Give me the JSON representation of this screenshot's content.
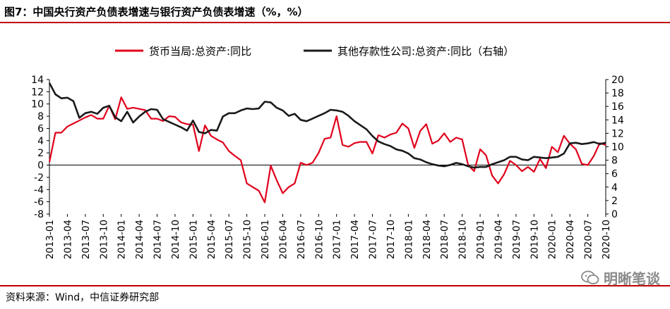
{
  "page": {
    "title": "图7：中国央行资产负债表增速与银行资产负债表增速（%，%）",
    "source": "资料来源：Wind，中信证券研究部",
    "watermark": "明晰笔谈"
  },
  "chart_data": {
    "type": "line",
    "title": "图7：中国央行资产负债表增速与银行资产负债表增速（%，%）",
    "legend_position": "top",
    "x_ticks": [
      "2013-01",
      "2013-04",
      "2013-07",
      "2013-10",
      "2014-01",
      "2014-04",
      "2014-07",
      "2014-10",
      "2015-01",
      "2015-04",
      "2015-07",
      "2015-10",
      "2016-01",
      "2016-04",
      "2016-07",
      "2016-10",
      "2017-01",
      "2017-04",
      "2017-07",
      "2017-10",
      "2018-01",
      "2018-04",
      "2018-07",
      "2018-10",
      "2019-01",
      "2019-04",
      "2019-07",
      "2019-10",
      "2020-01",
      "2020-04",
      "2020-07",
      "2020-10"
    ],
    "y_left": {
      "min": -8,
      "max": 14,
      "step": 2
    },
    "y_right": {
      "min": 0,
      "max": 20,
      "step": 2
    },
    "series": [
      {
        "name": "货币当局:总资产:同比",
        "axis": "left",
        "color": "#e0001b",
        "values": [
          0.5,
          5.3,
          5.3,
          6.3,
          6.8,
          7.3,
          7.8,
          8.2,
          7.6,
          7.6,
          9.7,
          7.5,
          11.1,
          9.2,
          9.4,
          9.2,
          9.0,
          7.6,
          7.6,
          7.2,
          8.0,
          7.9,
          7.0,
          6.7,
          6.6,
          2.3,
          6.5,
          4.8,
          4.2,
          3.7,
          2.3,
          1.5,
          0.8,
          -3.0,
          -3.6,
          -4.2,
          -6.1,
          -0.1,
          -2.5,
          -4.6,
          -3.6,
          -3.0,
          0.4,
          0.0,
          0.4,
          2.0,
          4.3,
          4.5,
          8.0,
          3.3,
          3.0,
          3.6,
          3.8,
          3.8,
          1.9,
          4.9,
          4.5,
          5.0,
          5.3,
          6.8,
          6.0,
          2.8,
          5.6,
          6.7,
          3.5,
          4.0,
          5.2,
          3.8,
          4.5,
          4.2,
          0.0,
          -1.0,
          2.6,
          1.6,
          -1.7,
          -3.0,
          -1.5,
          0.7,
          0.0,
          -1.0,
          -0.3,
          -1.1,
          1.0,
          -0.5,
          3.0,
          2.1,
          4.8,
          3.5,
          2.6,
          0.2,
          0.0,
          1.5,
          3.6,
          3.3
        ]
      },
      {
        "name": "其他存款性公司:总资产:同比（右轴）",
        "axis": "right",
        "color": "#1a1a1a",
        "values": [
          19.5,
          17.8,
          17.2,
          17.3,
          16.8,
          14.3,
          15.0,
          15.2,
          14.9,
          15.8,
          16.1,
          14.4,
          13.8,
          15.2,
          13.6,
          14.5,
          15.2,
          15.6,
          15.5,
          14.1,
          13.7,
          13.3,
          12.9,
          12.4,
          13.9,
          12.2,
          12.0,
          12.5,
          12.4,
          14.5,
          15.0,
          15.0,
          15.4,
          15.7,
          15.6,
          15.7,
          16.7,
          16.6,
          15.8,
          15.4,
          14.6,
          14.9,
          14.0,
          13.8,
          14.2,
          14.6,
          15.0,
          15.5,
          15.4,
          15.2,
          14.6,
          13.8,
          13.2,
          12.6,
          11.6,
          10.8,
          10.4,
          10.1,
          9.6,
          9.4,
          9.0,
          8.3,
          8.1,
          7.7,
          7.4,
          7.2,
          7.1,
          7.3,
          7.6,
          7.4,
          7.1,
          6.9,
          7.0,
          7.0,
          7.4,
          7.7,
          8.0,
          8.5,
          8.5,
          8.1,
          8.0,
          8.5,
          8.4,
          8.3,
          8.4,
          8.5,
          9.0,
          10.5,
          10.6,
          10.4,
          10.5,
          10.7,
          10.4,
          10.6
        ]
      }
    ],
    "annotations": [
      "0",
      "右轴"
    ]
  }
}
